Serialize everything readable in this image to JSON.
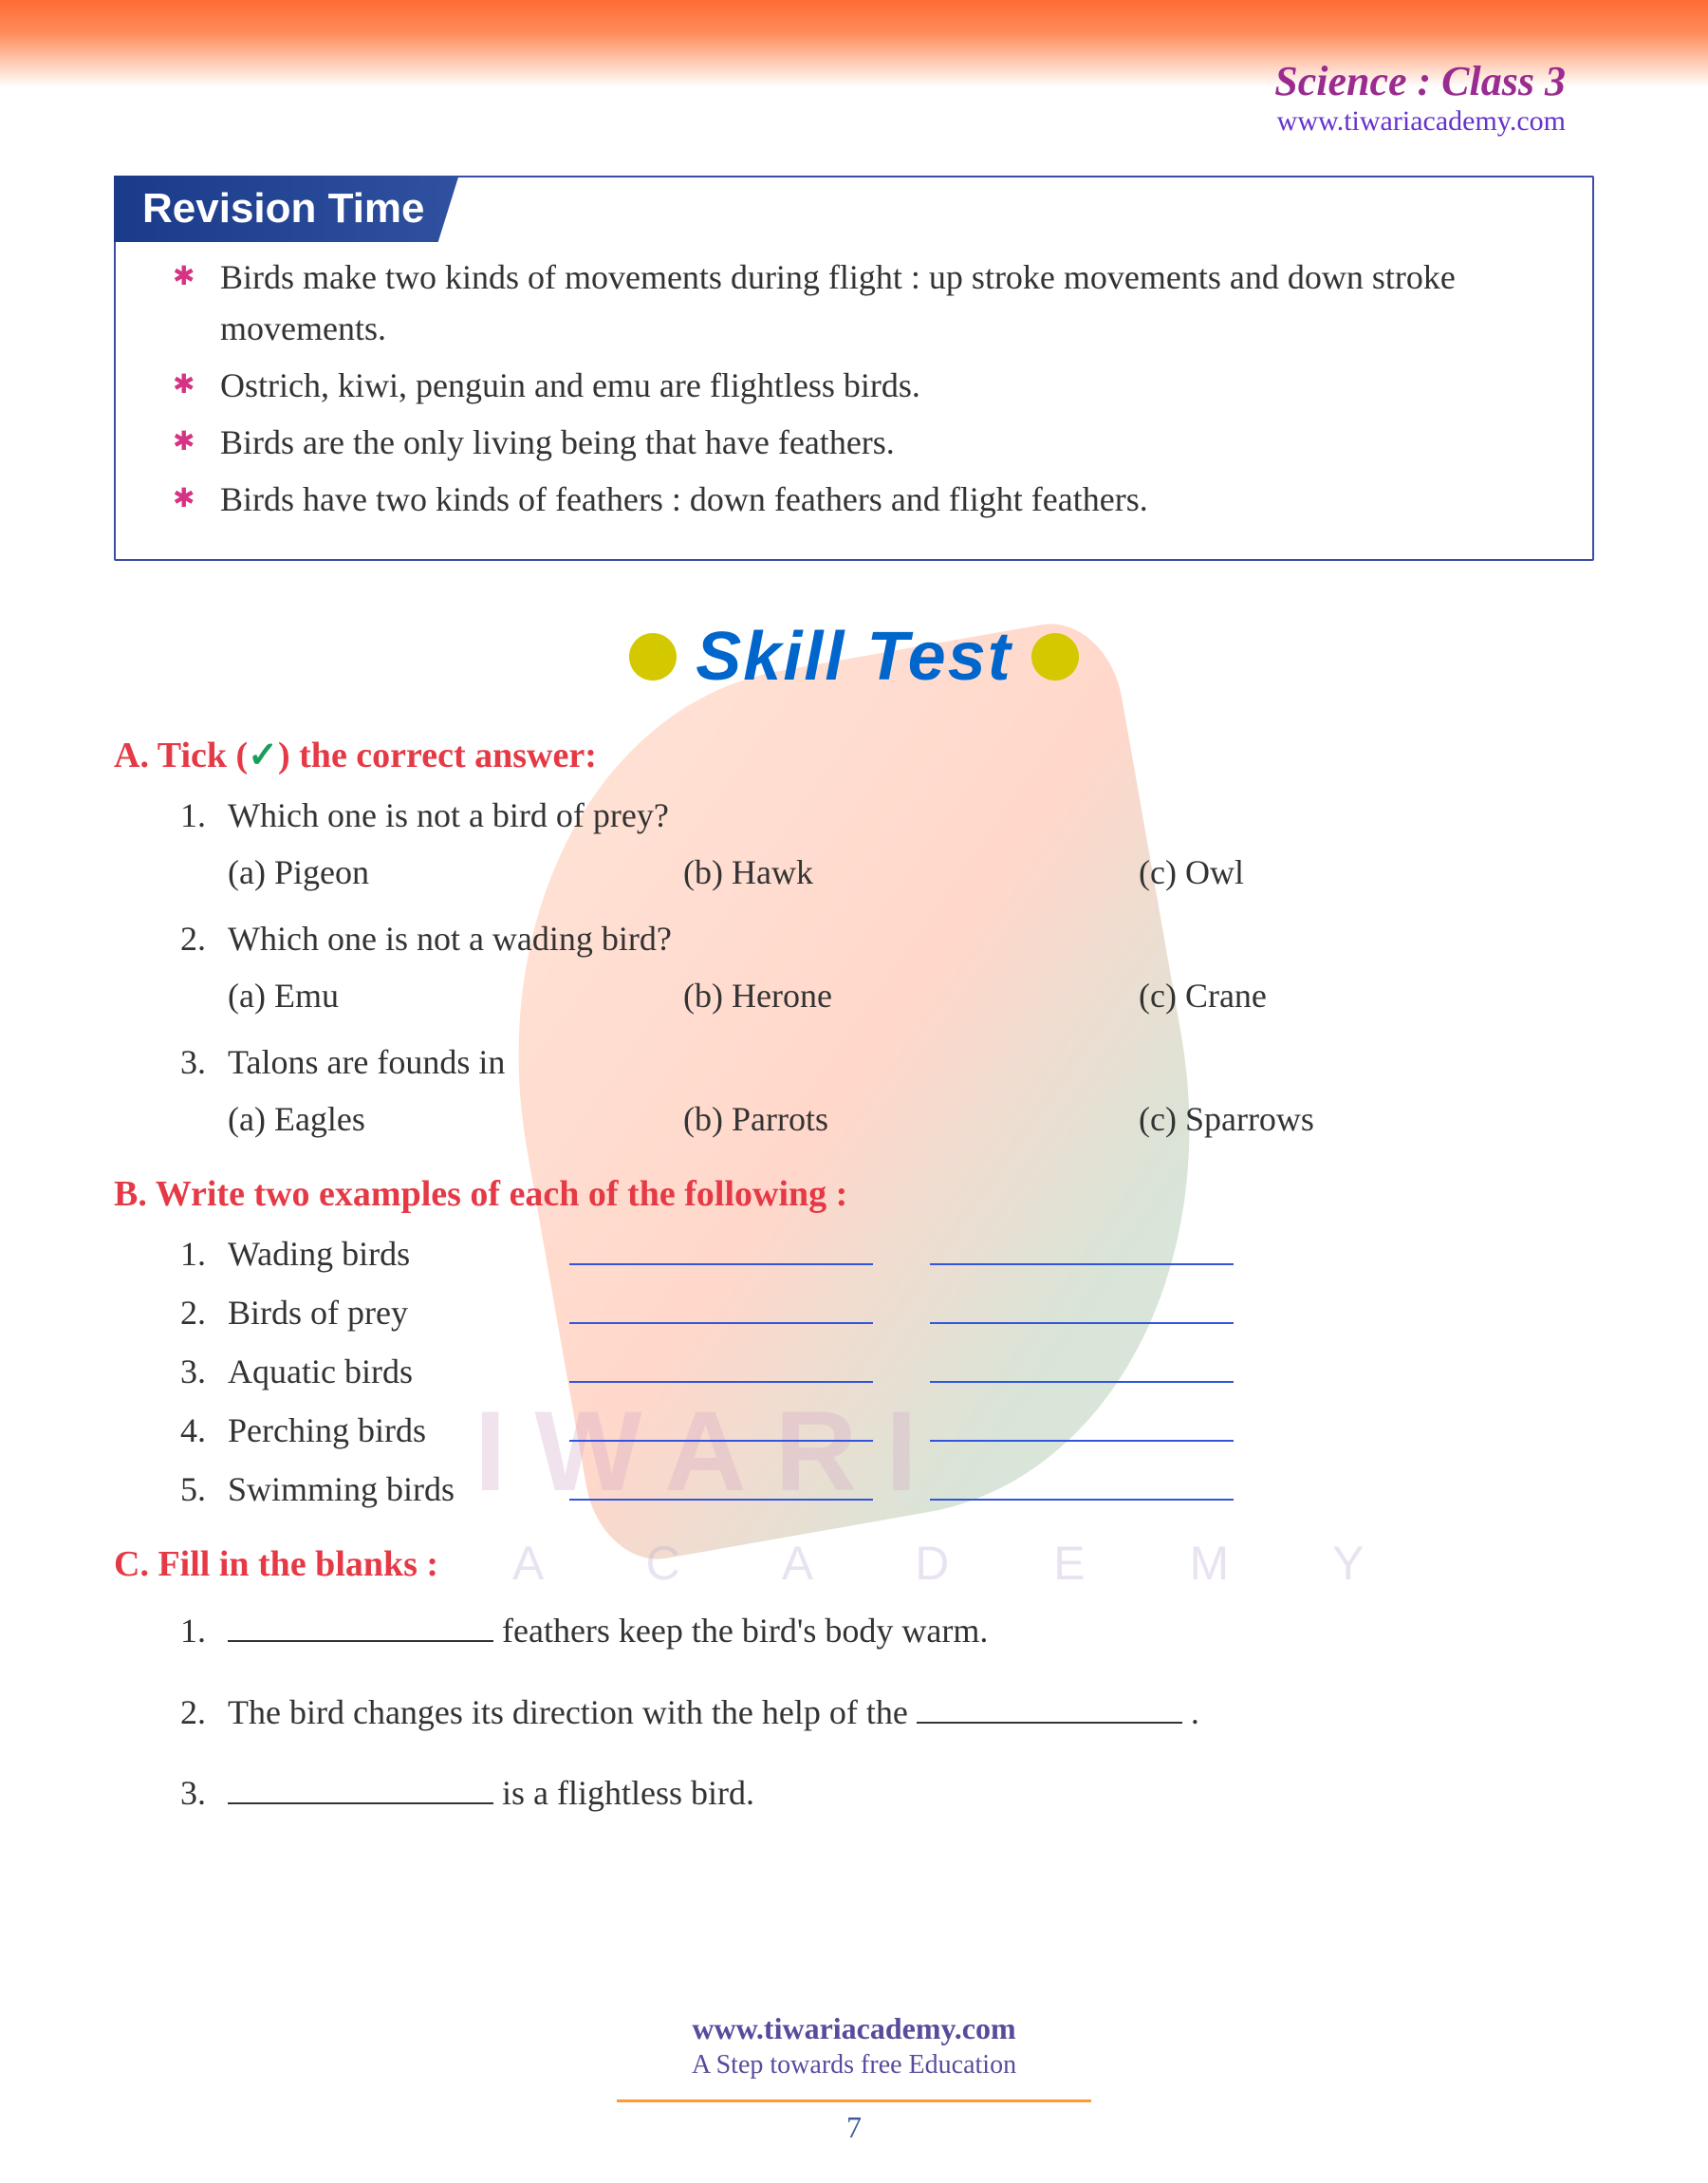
{
  "header": {
    "subject": "Science : Class 3",
    "url": "www.tiwariacademy.com"
  },
  "revision": {
    "title": "Revision Time",
    "points": [
      "Birds make two kinds of movements during flight : up stroke movements and down stroke movements.",
      "Ostrich, kiwi, penguin and emu are flightless birds.",
      "Birds are the only living being that have feathers.",
      "Birds have two kinds of feathers : down feathers and flight feathers."
    ]
  },
  "skill_title": "Skill Test",
  "section_a": {
    "letter": "A.",
    "title": "Tick (",
    "check": "✓",
    "title_after": ") the correct answer:",
    "questions": [
      {
        "num": "1.",
        "q": "Which one is not a bird of prey?",
        "a": "(a) Pigeon",
        "b": "(b) Hawk",
        "c": "(c) Owl"
      },
      {
        "num": "2.",
        "q": "Which one is not a wading bird?",
        "a": "(a) Emu",
        "b": "(b) Herone",
        "c": "(c) Crane"
      },
      {
        "num": "3.",
        "q": "Talons are founds in",
        "a": "(a) Eagles",
        "b": "(b) Parrots",
        "c": "(c) Sparrows"
      }
    ]
  },
  "section_b": {
    "letter": "B.",
    "title": "Write two examples of each of the following :",
    "items": [
      {
        "num": "1.",
        "label": "Wading birds"
      },
      {
        "num": "2.",
        "label": "Birds of prey"
      },
      {
        "num": "3.",
        "label": "Aquatic birds"
      },
      {
        "num": "4.",
        "label": "Perching birds"
      },
      {
        "num": "5.",
        "label": "Swimming birds"
      }
    ]
  },
  "section_c": {
    "letter": "C.",
    "title": "Fill in the blanks :",
    "items": [
      {
        "num": "1.",
        "before": "",
        "after": " feathers keep the bird's body warm."
      },
      {
        "num": "2.",
        "before": "The bird changes its direction with the help of the ",
        "after": " ."
      },
      {
        "num": "3.",
        "before": "",
        "after": " is a flightless bird."
      }
    ]
  },
  "watermark": {
    "line1": "IWARI",
    "line2": "A C A D E M Y"
  },
  "footer": {
    "url": "www.tiwariacademy.com",
    "tagline": "A Step towards free Education",
    "page": "7"
  },
  "colors": {
    "orange_gradient": "#ff6b35",
    "purple_header": "#9b2c8f",
    "link_purple": "#6633cc",
    "box_border": "#3b4ba8",
    "tab_bg": "#1a3a8a",
    "bullet_pink": "#d63384",
    "yellow_dot": "#d4c800",
    "skill_blue": "#0066cc",
    "section_red": "#e63946",
    "check_green": "#1a9d5a",
    "blank_blue": "#3355dd",
    "footer_purple": "#5a4a9c",
    "footer_line": "#ff9933",
    "body_text": "#333333"
  }
}
